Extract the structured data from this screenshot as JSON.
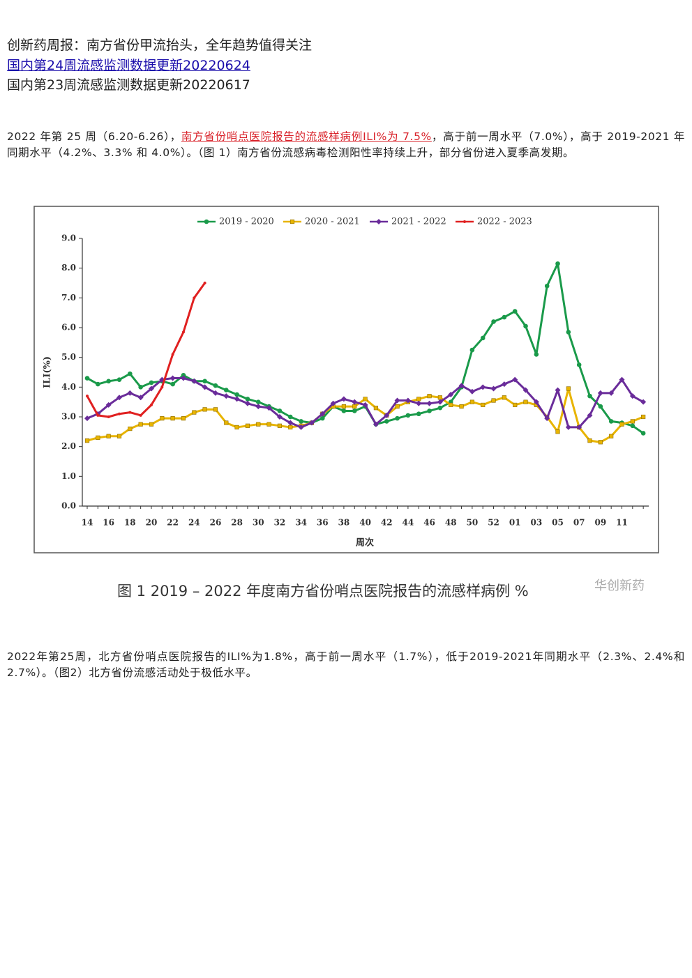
{
  "header": {
    "lines": [
      "创新药周报：南方省份甲流抬头，全年趋势值得关注",
      "国内第24周流感监测数据更新20220624",
      "国内第23周流感监测数据更新20220617"
    ]
  },
  "paragraph1": {
    "before": "2022 年第 25 周（6.20-6.26），",
    "highlight": "南方省份哨点医院报告的流感样病例ILI%为 7.5%",
    "after": "，高于前一周水平（7.0%），高于 2019-2021 年同期水平（4.2%、3.3% 和 4.0%）。（图 1）南方省份流感病毒检测阳性率持续上升，部分省份进入夏季高发期。"
  },
  "caption": "图 1  2019 – 2022 年度南方省份哨点医院报告的流感样病例 %",
  "watermark": "华创新药",
  "paragraph2": "2022年第25周，北方省份哨点医院报告的ILI%为1.8%，高于前一周水平（1.7%），低于2019-2021年同期水平（2.3%、2.4%和2.7%）。（图2）北方省份流感活动处于极低水平。",
  "chart_data": {
    "type": "line",
    "y_label": "ILI(%)",
    "x_label": "周次",
    "categories": [
      "14",
      null,
      "16",
      null,
      "18",
      null,
      "20",
      null,
      "22",
      null,
      "24",
      null,
      "26",
      null,
      "28",
      null,
      "30",
      null,
      "32",
      null,
      "34",
      null,
      "36",
      null,
      "38",
      null,
      "40",
      null,
      "42",
      null,
      "44",
      null,
      "46",
      null,
      "48",
      null,
      "50",
      null,
      "52",
      null,
      "01",
      null,
      "03",
      null,
      "05",
      null,
      "07",
      null,
      "09",
      null,
      "11",
      null,
      null
    ],
    "ylim": [
      0,
      9
    ],
    "yticks": [
      {
        "value": 0,
        "label": "0.0"
      },
      {
        "value": 1,
        "label": "1.0"
      },
      {
        "value": 2,
        "label": "2.0"
      },
      {
        "value": 3,
        "label": "3.0"
      },
      {
        "value": 4,
        "label": "4.0"
      },
      {
        "value": 5,
        "label": "5.0"
      },
      {
        "value": 6,
        "label": "6.0"
      },
      {
        "value": 7,
        "label": "7.0"
      },
      {
        "value": 8,
        "label": "8.0"
      },
      {
        "value": 9,
        "label": "9.0"
      }
    ],
    "legend": "top",
    "series": [
      {
        "name": "2019 - 2020",
        "color": "#1a9a4a",
        "marker": "circle",
        "values": [
          4.3,
          4.1,
          4.2,
          4.25,
          4.45,
          4.0,
          4.15,
          4.2,
          4.1,
          4.4,
          4.2,
          4.2,
          4.05,
          3.9,
          3.75,
          3.6,
          3.5,
          3.35,
          3.2,
          3.0,
          2.85,
          2.8,
          2.95,
          3.35,
          3.2,
          3.2,
          3.35,
          2.75,
          2.85,
          2.95,
          3.05,
          3.1,
          3.2,
          3.3,
          3.5,
          4.0,
          5.25,
          5.65,
          6.2,
          6.35,
          6.55,
          6.05,
          5.1,
          7.4,
          8.15,
          5.85,
          4.75,
          3.7,
          3.35,
          2.85,
          2.8,
          2.7,
          2.45
        ]
      },
      {
        "name": "2020 - 2021",
        "color": "#e8b400",
        "marker": "square",
        "values": [
          2.2,
          2.3,
          2.35,
          2.35,
          2.6,
          2.75,
          2.75,
          2.95,
          2.95,
          2.95,
          3.15,
          3.25,
          3.25,
          2.8,
          2.65,
          2.7,
          2.75,
          2.75,
          2.7,
          2.65,
          2.7,
          2.8,
          3.1,
          3.35,
          3.35,
          3.35,
          3.6,
          3.3,
          3.05,
          3.35,
          3.5,
          3.6,
          3.7,
          3.65,
          3.4,
          3.35,
          3.5,
          3.4,
          3.55,
          3.65,
          3.4,
          3.5,
          3.4,
          3.0,
          2.5,
          3.95,
          2.65,
          2.2,
          2.15,
          2.35,
          2.75,
          2.85,
          3.0
        ]
      },
      {
        "name": "2021 - 2022",
        "color": "#6a2c9a",
        "marker": "diamond",
        "values": [
          2.95,
          3.1,
          3.4,
          3.65,
          3.8,
          3.65,
          3.95,
          4.25,
          4.3,
          4.3,
          4.2,
          4.0,
          3.8,
          3.7,
          3.6,
          3.45,
          3.35,
          3.3,
          3.0,
          2.8,
          2.65,
          2.8,
          3.1,
          3.45,
          3.6,
          3.5,
          3.4,
          2.75,
          3.05,
          3.55,
          3.55,
          3.45,
          3.45,
          3.5,
          3.75,
          4.05,
          3.85,
          4.0,
          3.95,
          4.1,
          4.25,
          3.9,
          3.5,
          2.95,
          3.9,
          2.65,
          2.65,
          3.05,
          3.8,
          3.8,
          4.25,
          3.7,
          3.5
        ]
      },
      {
        "name": "2022 - 2023",
        "color": "#e02020",
        "marker": "dot",
        "values": [
          3.7,
          3.05,
          3.0,
          3.1,
          3.15,
          3.05,
          3.4,
          4.0,
          5.1,
          5.85,
          7.0,
          7.5,
          null,
          null,
          null,
          null,
          null,
          null,
          null,
          null,
          null,
          null,
          null,
          null,
          null,
          null,
          null,
          null,
          null,
          null,
          null,
          null,
          null,
          null,
          null,
          null,
          null,
          null,
          null,
          null,
          null,
          null,
          null,
          null,
          null,
          null,
          null,
          null,
          null,
          null,
          null,
          null,
          null
        ]
      }
    ]
  }
}
